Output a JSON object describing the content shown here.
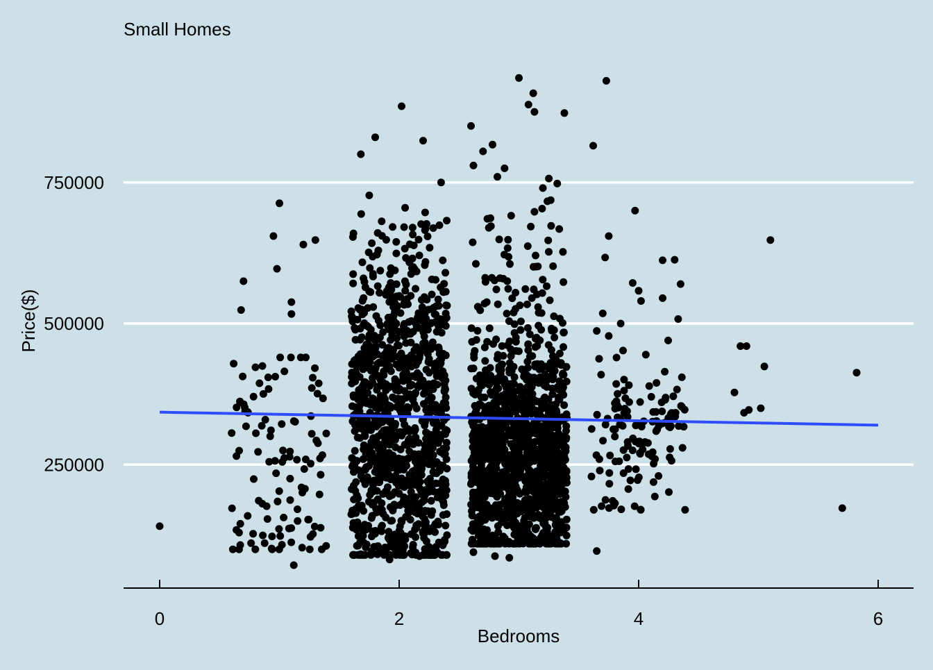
{
  "chart_data": {
    "type": "scatter",
    "title": "Small Homes",
    "xlabel": "Bedrooms",
    "ylabel": "Price($)",
    "xlim": [
      -0.3,
      6.3
    ],
    "ylim": [
      45000,
      1000000
    ],
    "x_ticks": [
      0,
      2,
      4,
      6
    ],
    "x_tick_labels": [
      "0",
      "2",
      "4",
      "6"
    ],
    "y_ticks": [
      250000,
      500000,
      750000
    ],
    "y_tick_labels": [
      "250000",
      "500000",
      "750000"
    ],
    "grid": "horizontal major lines only",
    "legend": "none",
    "background_color": "#cde0e8",
    "grid_color": "#ffffff",
    "point_color": "#000000",
    "trend_color": "#2f4cff",
    "jitter_width": 0.4,
    "trend_line": {
      "method": "linear fit",
      "x": [
        0,
        6
      ],
      "y": [
        343000,
        320000
      ]
    },
    "outliers": [
      {
        "x": 0.0,
        "y": 141000
      },
      {
        "x": 1.0,
        "y": 713000
      },
      {
        "x": 0.95,
        "y": 655000
      },
      {
        "x": 1.3,
        "y": 648000
      },
      {
        "x": 1.2,
        "y": 640000
      },
      {
        "x": 0.98,
        "y": 597000
      },
      {
        "x": 0.7,
        "y": 575000
      },
      {
        "x": 0.68,
        "y": 524000
      },
      {
        "x": 1.1,
        "y": 538000
      },
      {
        "x": 1.1,
        "y": 517000
      },
      {
        "x": 1.12,
        "y": 72000
      },
      {
        "x": 1.8,
        "y": 830000
      },
      {
        "x": 1.68,
        "y": 800000
      },
      {
        "x": 2.02,
        "y": 885000
      },
      {
        "x": 2.2,
        "y": 824000
      },
      {
        "x": 2.35,
        "y": 750000
      },
      {
        "x": 1.75,
        "y": 727000
      },
      {
        "x": 2.05,
        "y": 705000
      },
      {
        "x": 2.6,
        "y": 850000
      },
      {
        "x": 2.78,
        "y": 817000
      },
      {
        "x": 2.7,
        "y": 805000
      },
      {
        "x": 2.62,
        "y": 780000
      },
      {
        "x": 2.88,
        "y": 775000
      },
      {
        "x": 2.82,
        "y": 760000
      },
      {
        "x": 3.0,
        "y": 935000
      },
      {
        "x": 3.12,
        "y": 908000
      },
      {
        "x": 3.08,
        "y": 888000
      },
      {
        "x": 3.13,
        "y": 875000
      },
      {
        "x": 3.38,
        "y": 873000
      },
      {
        "x": 3.25,
        "y": 757000
      },
      {
        "x": 3.32,
        "y": 748000
      },
      {
        "x": 3.2,
        "y": 740000
      },
      {
        "x": 3.73,
        "y": 930000
      },
      {
        "x": 3.62,
        "y": 815000
      },
      {
        "x": 2.62,
        "y": 95000
      },
      {
        "x": 2.8,
        "y": 88000
      },
      {
        "x": 2.92,
        "y": 85000
      },
      {
        "x": 1.92,
        "y": 82000
      },
      {
        "x": 2.17,
        "y": 88000
      },
      {
        "x": 3.72,
        "y": 617000
      },
      {
        "x": 3.75,
        "y": 655000
      },
      {
        "x": 3.97,
        "y": 700000
      },
      {
        "x": 4.2,
        "y": 612000
      },
      {
        "x": 4.3,
        "y": 613000
      },
      {
        "x": 3.95,
        "y": 572000
      },
      {
        "x": 4.0,
        "y": 558000
      },
      {
        "x": 4.02,
        "y": 540000
      },
      {
        "x": 4.35,
        "y": 570000
      },
      {
        "x": 4.2,
        "y": 545000
      },
      {
        "x": 4.33,
        "y": 508000
      },
      {
        "x": 3.7,
        "y": 518000
      },
      {
        "x": 3.85,
        "y": 500000
      },
      {
        "x": 3.65,
        "y": 487000
      },
      {
        "x": 3.75,
        "y": 478000
      },
      {
        "x": 3.65,
        "y": 97000
      },
      {
        "x": 4.8,
        "y": 378000
      },
      {
        "x": 4.85,
        "y": 460000
      },
      {
        "x": 4.9,
        "y": 460000
      },
      {
        "x": 5.05,
        "y": 424000
      },
      {
        "x": 4.88,
        "y": 342000
      },
      {
        "x": 4.92,
        "y": 347000
      },
      {
        "x": 5.02,
        "y": 350000
      },
      {
        "x": 5.1,
        "y": 648000
      },
      {
        "x": 5.7,
        "y": 173000
      },
      {
        "x": 5.82,
        "y": 413000
      }
    ],
    "clusters": [
      {
        "bedrooms": 1,
        "count": 110,
        "price_min": 100000,
        "price_max": 440000,
        "price_peak": 280000
      },
      {
        "bedrooms": 2,
        "count": 1100,
        "price_min": 90000,
        "price_max": 700000,
        "price_peak": 330000
      },
      {
        "bedrooms": 3,
        "count": 1350,
        "price_min": 110000,
        "price_max": 720000,
        "price_peak": 270000
      },
      {
        "bedrooms": 4,
        "count": 130,
        "price_min": 170000,
        "price_max": 470000,
        "price_peak": 300000
      }
    ]
  }
}
